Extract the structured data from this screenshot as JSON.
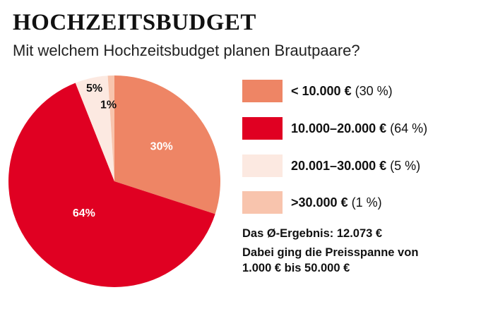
{
  "header": {
    "title": "HOCHZEITSBUDGET",
    "subtitle": "Mit welchem Hochzeitsbudget planen Brautpaare?"
  },
  "chart_data": {
    "type": "pie",
    "title": "HOCHZEITSBUDGET",
    "subtitle": "Mit welchem Hochzeitsbudget planen Brautpaare?",
    "slices": [
      {
        "range": "< 10.000 €",
        "share": "(30 %)",
        "value": 30,
        "label": "30%",
        "color": "#ee8565",
        "label_color": "#ffffff"
      },
      {
        "range": "10.000–20.000 €",
        "share": "(64 %)",
        "value": 64,
        "label": "64%",
        "color": "#e00022",
        "label_color": "#ffffff"
      },
      {
        "range": "20.001–30.000 €",
        "share": "(5 %)",
        "value": 5,
        "label": "5%",
        "color": "#fce9e1",
        "label_color": "#111111"
      },
      {
        "range": ">30.000 €",
        "share": "(1 %)",
        "value": 1,
        "label": "1%",
        "color": "#f8c4ad",
        "label_color": "#111111"
      }
    ],
    "legend_position": "right"
  },
  "notes": {
    "average": "Das Ø-Ergebnis: 12.073 €",
    "range_line1": "Dabei ging die Preisspanne von",
    "range_line2": "1.000 € bis 50.000 €"
  }
}
